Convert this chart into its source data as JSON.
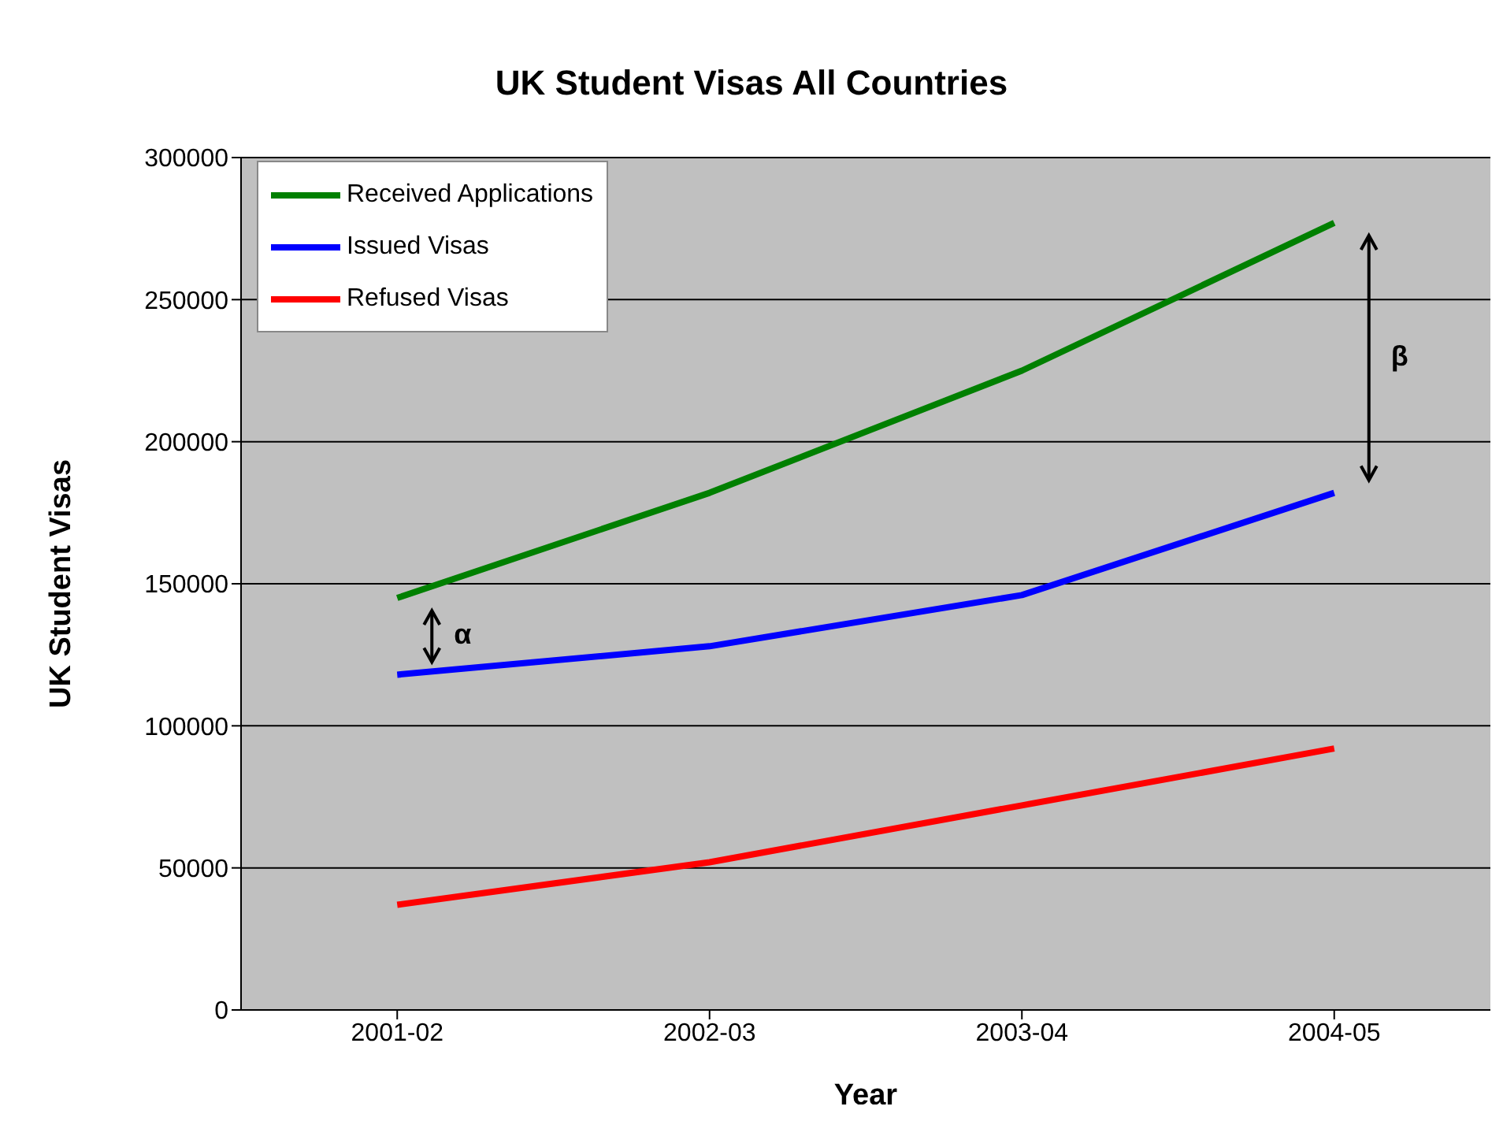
{
  "chart_data": {
    "type": "line",
    "title": "UK Student Visas All Countries",
    "xlabel": "Year",
    "ylabel": "UK Student Visas",
    "categories": [
      "2001-02",
      "2002-03",
      "2003-04",
      "2004-05"
    ],
    "series": [
      {
        "name": "Received Applications",
        "color": "#008000",
        "values": [
          145000,
          182000,
          225000,
          277000
        ]
      },
      {
        "name": "Issued Visas",
        "color": "#0000ff",
        "values": [
          118000,
          128000,
          146000,
          182000
        ]
      },
      {
        "name": "Refused Visas",
        "color": "#ff0000",
        "values": [
          37000,
          52000,
          72000,
          92000
        ]
      }
    ],
    "ylim": [
      0,
      300000
    ],
    "yticks": [
      0,
      50000,
      100000,
      150000,
      200000,
      250000,
      300000
    ],
    "grid": "y",
    "legend": "top left",
    "marker": "none",
    "line_style": "solid",
    "annotations": [
      "α",
      "β"
    ]
  }
}
